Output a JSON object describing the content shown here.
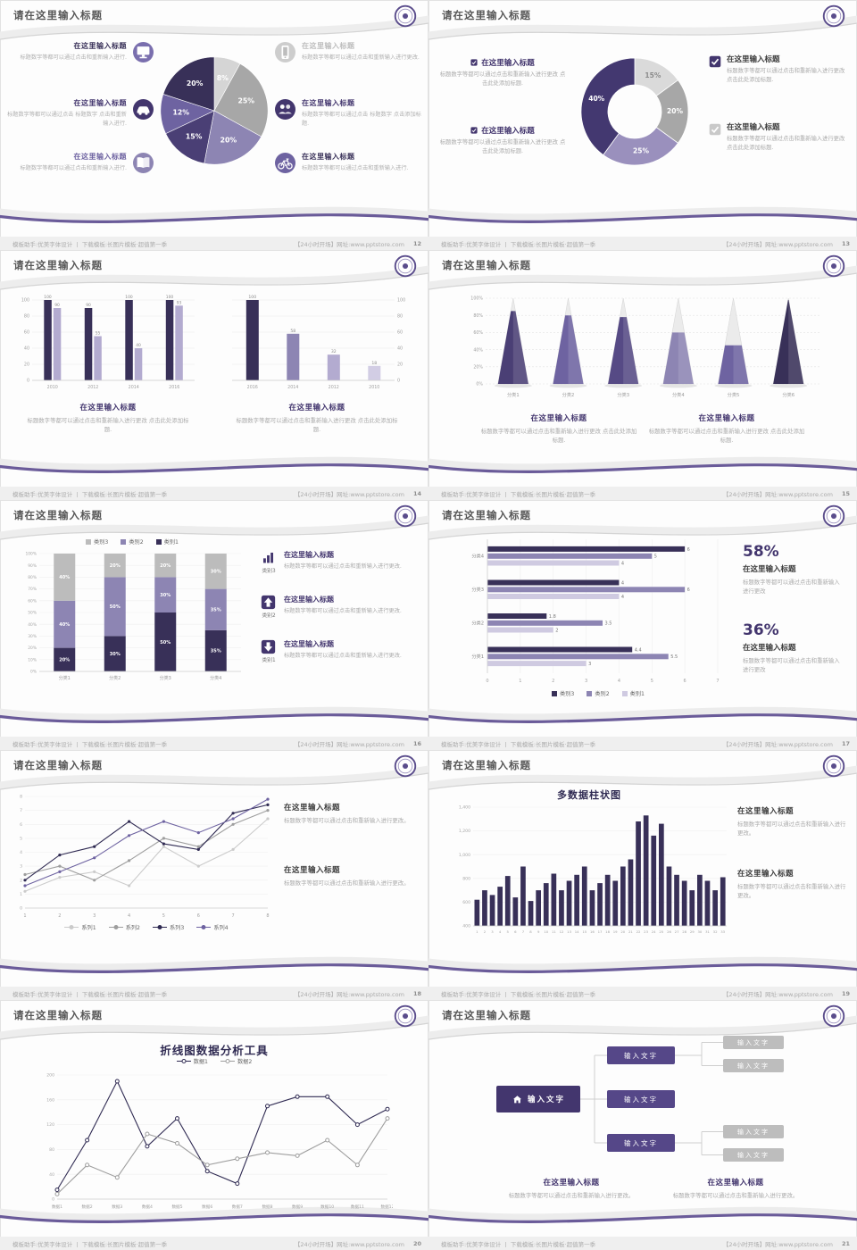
{
  "common": {
    "slide_title": "请在这里输入标题",
    "footer_left": "模板助手:优美字体设计 丨 下载模板:长图片模板·超值第一季",
    "footer_right": "【24小时开场】网址:www.pptstore.com",
    "accent": "#43366e"
  },
  "slides": [
    {
      "number": "12",
      "type": "pie_callouts",
      "chart_data": {
        "type": "pie",
        "values": [
          8,
          25,
          20,
          15,
          12,
          20
        ],
        "labels": [
          "8%",
          "25%",
          "20%",
          "15%",
          "12%",
          "20%"
        ],
        "colors": [
          "#d5d5d5",
          "#a7a7a7",
          "#8d85b3",
          "#4a3f75",
          "#6e63a1",
          "#383058"
        ],
        "label_colors": [
          "#ffffff",
          "#ffffff",
          "#ffffff",
          "#ffffff",
          "#ffffff",
          "#ffffff"
        ]
      },
      "callouts_left": [
        {
          "icon": "monitor-icon",
          "icon_bg": "#7a6fae",
          "title": "在这里输入标题",
          "title_color": "#383058",
          "desc": "标题数字等都可以通过点击和重新输入进行."
        },
        {
          "icon": "car-icon",
          "icon_bg": "#43366e",
          "title": "在这里输入标题",
          "title_color": "#43366e",
          "desc": "标题数字等都可以通过点击 标题数字 点击和重新输入进行."
        },
        {
          "icon": "book-icon",
          "icon_bg": "#8d85b3",
          "title": "在这里输入标题",
          "title_color": "#6e63a1",
          "desc": "标题数字等都可以通过点击和重新输入进行."
        }
      ],
      "callouts_right": [
        {
          "icon": "phone-icon",
          "icon_bg": "#cdcdcd",
          "title": "在这里输入标题",
          "title_color": "#bdbdbd",
          "desc": "标题数字等都可以通过点击和重新输入进行更改."
        },
        {
          "icon": "people-icon",
          "icon_bg": "#43366e",
          "title": "在这里输入标题",
          "title_color": "#43366e",
          "desc": "标题数字等都可以通过点击 标题数字 点击添加标题."
        },
        {
          "icon": "bike-icon",
          "icon_bg": "#6e63a1",
          "title": "在这里输入标题",
          "title_color": "#383058",
          "desc": "标题数字等都可以通过点击和重新输入进行."
        }
      ]
    },
    {
      "number": "13",
      "type": "donut",
      "chart_data": {
        "type": "pie",
        "values": [
          15,
          20,
          25,
          40
        ],
        "labels": [
          "15%",
          "20%",
          "25%",
          "40%"
        ],
        "colors": [
          "#dadada",
          "#a7a7a7",
          "#9a90bd",
          "#433870"
        ],
        "label_colors": [
          "#8a8a8a",
          "#ffffff",
          "#ffffff",
          "#ffffff"
        ]
      },
      "left_items": [
        {
          "title": "在这里输入标题",
          "desc": "标题数字等都可以通过点击和重新输入进行更改 点击此处添加标题."
        },
        {
          "title": "在这里输入标题",
          "desc": "标题数字等都可以通过点击和重新输入进行更改 点击此处添加标题."
        }
      ],
      "right_items": [
        {
          "checkbox_color": "#43366e",
          "title": "在这里输入标题",
          "desc": "标题数字等都可以通过点击和重新输入进行更改 点击此处添加标题."
        },
        {
          "checkbox_color": "#c9c9c9",
          "title": "在这里输入标题",
          "desc": "标题数字等都可以通过点击和重新输入进行更改 点击此处添加标题."
        }
      ]
    },
    {
      "number": "14",
      "type": "two_bars",
      "chart_data": [
        {
          "type": "bar",
          "categories": [
            "2010",
            "2012",
            "2014",
            "2016"
          ],
          "series": [
            {
              "name": "系列1",
              "color": "#383058",
              "values": [
                100,
                90,
                100,
                100
              ]
            },
            {
              "name": "系列2",
              "color": "#b3abd0",
              "values": [
                90,
                55,
                40,
                93
              ]
            }
          ],
          "ylim": [
            0,
            100
          ],
          "yticks": [
            0,
            20,
            40,
            60,
            80,
            100
          ]
        },
        {
          "type": "bar",
          "categories": [
            "2016",
            "2014",
            "2012",
            "2010"
          ],
          "values": [
            100,
            58,
            32,
            18
          ],
          "colors": [
            "#383058",
            "#8d85b3",
            "#b3abd0",
            "#d2cde4"
          ],
          "ylim": [
            0,
            100
          ],
          "yticks": [
            0,
            20,
            40,
            60,
            80,
            100
          ]
        }
      ],
      "blocks": [
        {
          "title": "在这里输入标题",
          "desc": "标题数字等都可以通过点击和重新输入进行更改 点击此处添加标题."
        },
        {
          "title": "在这里输入标题",
          "desc": "标题数字等都可以通过点击和重新输入进行更改 点击此处添加标题."
        }
      ]
    },
    {
      "number": "15",
      "type": "cones",
      "chart_data": {
        "type": "bar",
        "categories": [
          "分类1",
          "分类2",
          "分类3",
          "分类4",
          "分类5",
          "分类6"
        ],
        "values": [
          85,
          80,
          78,
          60,
          45,
          98
        ],
        "colors": [
          "#4a3f75",
          "#6e63a1",
          "#564a85",
          "#8d85b3",
          "#6e63a1",
          "#383058"
        ],
        "ylim": [
          0,
          100
        ]
      },
      "blocks": [
        {
          "title": "在这里输入标题",
          "desc": "标题数字等都可以通过点击和重新输入进行更改 点击此处添加标题."
        },
        {
          "title": "在这里输入标题",
          "desc": "标题数字等都可以通过点击和重新输入进行更改 点击此处添加标题."
        }
      ]
    },
    {
      "number": "16",
      "type": "stacked",
      "chart_data": {
        "type": "bar",
        "categories": [
          "分类1",
          "分类2",
          "分类3",
          "分类4"
        ],
        "series": [
          {
            "name": "类别1",
            "color": "#383058",
            "values": [
              20,
              30,
              50,
              35
            ]
          },
          {
            "name": "类别2",
            "color": "#8d85b3",
            "values": [
              40,
              50,
              30,
              35
            ]
          },
          {
            "name": "类别3",
            "color": "#bcbcbc",
            "values": [
              40,
              20,
              20,
              30
            ]
          }
        ],
        "legend": [
          "类别3",
          "类别2",
          "类别1"
        ],
        "yticks": [
          "0%",
          "10%",
          "20%",
          "30%",
          "40%",
          "50%",
          "60%",
          "70%",
          "80%",
          "90%",
          "100%"
        ]
      },
      "right_items": [
        {
          "icon": "bar-chart-icon",
          "icon_label": "类别3",
          "title": "在这里输入标题",
          "desc": "标题数字等都可以通过点击和重新输入进行更改."
        },
        {
          "icon": "arrow-up-icon",
          "icon_label": "类别2",
          "title": "在这里输入标题",
          "desc": "标题数字等都可以通过点击和重新输入进行更改."
        },
        {
          "icon": "arrow-down-icon",
          "icon_label": "类别1",
          "title": "在这里输入标题",
          "desc": "标题数字等都可以通过点击和重新输入进行更改."
        }
      ]
    },
    {
      "number": "17",
      "type": "hbars",
      "chart_data": {
        "type": "bar",
        "categories": [
          "分类4",
          "分类3",
          "分类2",
          "分类1"
        ],
        "series": [
          {
            "name": "类别3",
            "color": "#383058",
            "values": [
              6,
              4,
              1.8,
              4.4
            ]
          },
          {
            "name": "类别2",
            "color": "#8d85b3",
            "values": [
              5,
              6,
              3.5,
              5.5
            ]
          },
          {
            "name": "类别1",
            "color": "#cfcae1",
            "values": [
              4,
              4,
              2,
              3
            ]
          }
        ],
        "xlim": [
          0,
          7
        ],
        "xticks": [
          0,
          1,
          2,
          3,
          4,
          5,
          6,
          7
        ],
        "legend": [
          "类别3",
          "类别2",
          "类别1"
        ]
      },
      "stats": [
        {
          "value": "58%",
          "title": "在这里输入标题",
          "desc": "标题数字等都可以通过点击和重新输入进行更改"
        },
        {
          "value": "36%",
          "title": "在这里输入标题",
          "desc": "标题数字等都可以通过点击和重新输入进行更改"
        }
      ]
    },
    {
      "number": "18",
      "type": "lines",
      "chart_data": {
        "type": "line",
        "x": [
          1,
          2,
          3,
          4,
          5,
          6,
          7,
          8
        ],
        "ylim": [
          0,
          8
        ],
        "yticks": [
          0,
          1,
          2,
          3,
          4,
          5,
          6,
          7,
          8
        ],
        "series": [
          {
            "name": "系列1",
            "color": "#cbcbcb",
            "values": [
              1.2,
              2.2,
              2.6,
              1.6,
              4.4,
              3,
              4.2,
              6.4
            ]
          },
          {
            "name": "系列2",
            "color": "#9e9e9e",
            "values": [
              2.4,
              3,
              2,
              3.4,
              5,
              4.4,
              6,
              7
            ]
          },
          {
            "name": "系列3",
            "color": "#2f2a52",
            "values": [
              2,
              3.8,
              4.4,
              6.2,
              4.6,
              4.2,
              6.8,
              7.4
            ]
          },
          {
            "name": "系列4",
            "color": "#6e63a1",
            "values": [
              1.6,
              2.6,
              3.6,
              5.2,
              6.2,
              5.4,
              6.4,
              7.8
            ]
          }
        ]
      },
      "blocks": [
        {
          "title": "在这里输入标题",
          "desc": "标题数字等都可以通过点击和重新输入进行更改。"
        },
        {
          "title": "在这里输入标题",
          "desc": "标题数字等都可以通过点击和重新输入进行更改。"
        }
      ]
    },
    {
      "number": "19",
      "type": "columns",
      "chart_data": {
        "type": "bar",
        "title": "多数据柱状图",
        "x": [
          1,
          2,
          3,
          4,
          5,
          6,
          7,
          8,
          9,
          10,
          11,
          12,
          13,
          14,
          15,
          16,
          17,
          18,
          19,
          20,
          21,
          22,
          23,
          24,
          25,
          26,
          27,
          28,
          29,
          30,
          31,
          32,
          33
        ],
        "values": [
          620,
          700,
          660,
          730,
          820,
          640,
          900,
          610,
          700,
          760,
          840,
          700,
          780,
          830,
          900,
          700,
          760,
          830,
          780,
          900,
          960,
          1280,
          1330,
          1160,
          1260,
          900,
          830,
          780,
          700,
          830,
          780,
          700,
          810
        ],
        "ylim": [
          400,
          1400
        ],
        "yticks": [
          "400",
          "600",
          "800",
          "1,000",
          "1,200",
          "1,400"
        ]
      },
      "blocks": [
        {
          "title": "在这里输入标题",
          "desc": "标题数字等都可以通过点击和重新输入进行更改。"
        },
        {
          "title": "在这里输入标题",
          "desc": "标题数字等都可以通过点击和重新输入进行更改。"
        }
      ]
    },
    {
      "number": "20",
      "type": "line_tool",
      "chart_data": {
        "type": "line",
        "title": "折线图数据分析工具",
        "x_labels": [
          "数据1",
          "数据2",
          "数据3",
          "数据4",
          "数据5",
          "数据6",
          "数据7",
          "数据8",
          "数据9",
          "数据10",
          "数据11",
          "数据12"
        ],
        "ylim": [
          0,
          200
        ],
        "yticks": [
          0,
          40,
          80,
          120,
          160,
          200
        ],
        "series": [
          {
            "name": "数据1",
            "color": "#2f2a52",
            "values": [
              15,
              95,
              190,
              85,
              130,
              45,
              25,
              150,
              165,
              165,
              120,
              145
            ]
          },
          {
            "name": "数据2",
            "color": "#9e9e9e",
            "values": [
              8,
              55,
              35,
              105,
              90,
              55,
              65,
              75,
              70,
              95,
              55,
              130
            ]
          }
        ]
      }
    },
    {
      "number": "21",
      "type": "flow",
      "flow": {
        "root_label": "输入文字",
        "mid_labels": [
          "输入文字",
          "输入文字",
          "输入文字"
        ],
        "leaf_labels": [
          "输入文字",
          "输入文字",
          "输入文字",
          "输入文字"
        ]
      },
      "blocks": [
        {
          "title": "在这里输入标题",
          "desc": "标题数字等都可以通过点击和重新输入进行更改。"
        },
        {
          "title": "在这里输入标题",
          "desc": "标题数字等都可以通过点击和重新输入进行更改。"
        }
      ]
    }
  ]
}
